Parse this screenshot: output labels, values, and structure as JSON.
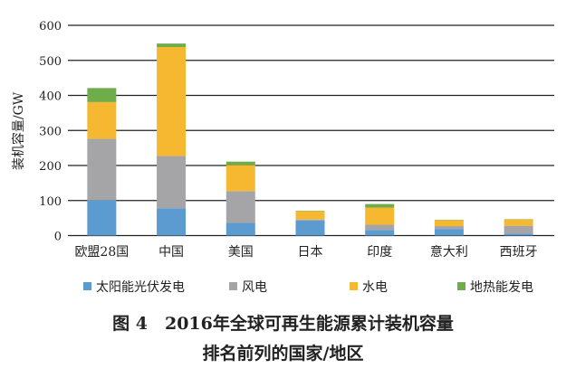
{
  "chart_data": {
    "type": "bar",
    "stacked": true,
    "title": "图 4　2016年全球可再生能源累计装机容量",
    "title_line2": "排名前列的国家/地区",
    "xlabel": "",
    "ylabel": "装机容量/GW",
    "ylim": [
      0,
      600
    ],
    "yticks": [
      0,
      100,
      200,
      300,
      400,
      500,
      600
    ],
    "grid": true,
    "legend_position": "bottom",
    "categories": [
      "欧盟28国",
      "中国",
      "美国",
      "日本",
      "印度",
      "意大利",
      "西班牙"
    ],
    "series": [
      {
        "name": "太阳能光伏发电",
        "color": "#5b9bd0",
        "values": [
          101,
          78,
          36,
          43,
          16,
          19,
          5
        ]
      },
      {
        "name": "风电",
        "color": "#a5a5a8",
        "values": [
          175,
          149,
          91,
          3,
          15,
          8,
          23
        ]
      },
      {
        "name": "水电",
        "color": "#f5b830",
        "values": [
          105,
          311,
          74,
          24,
          49,
          17,
          18
        ]
      },
      {
        "name": "地热能发电",
        "color": "#6fac4a",
        "values": [
          40,
          10,
          10,
          1,
          10,
          1,
          1
        ]
      }
    ]
  }
}
